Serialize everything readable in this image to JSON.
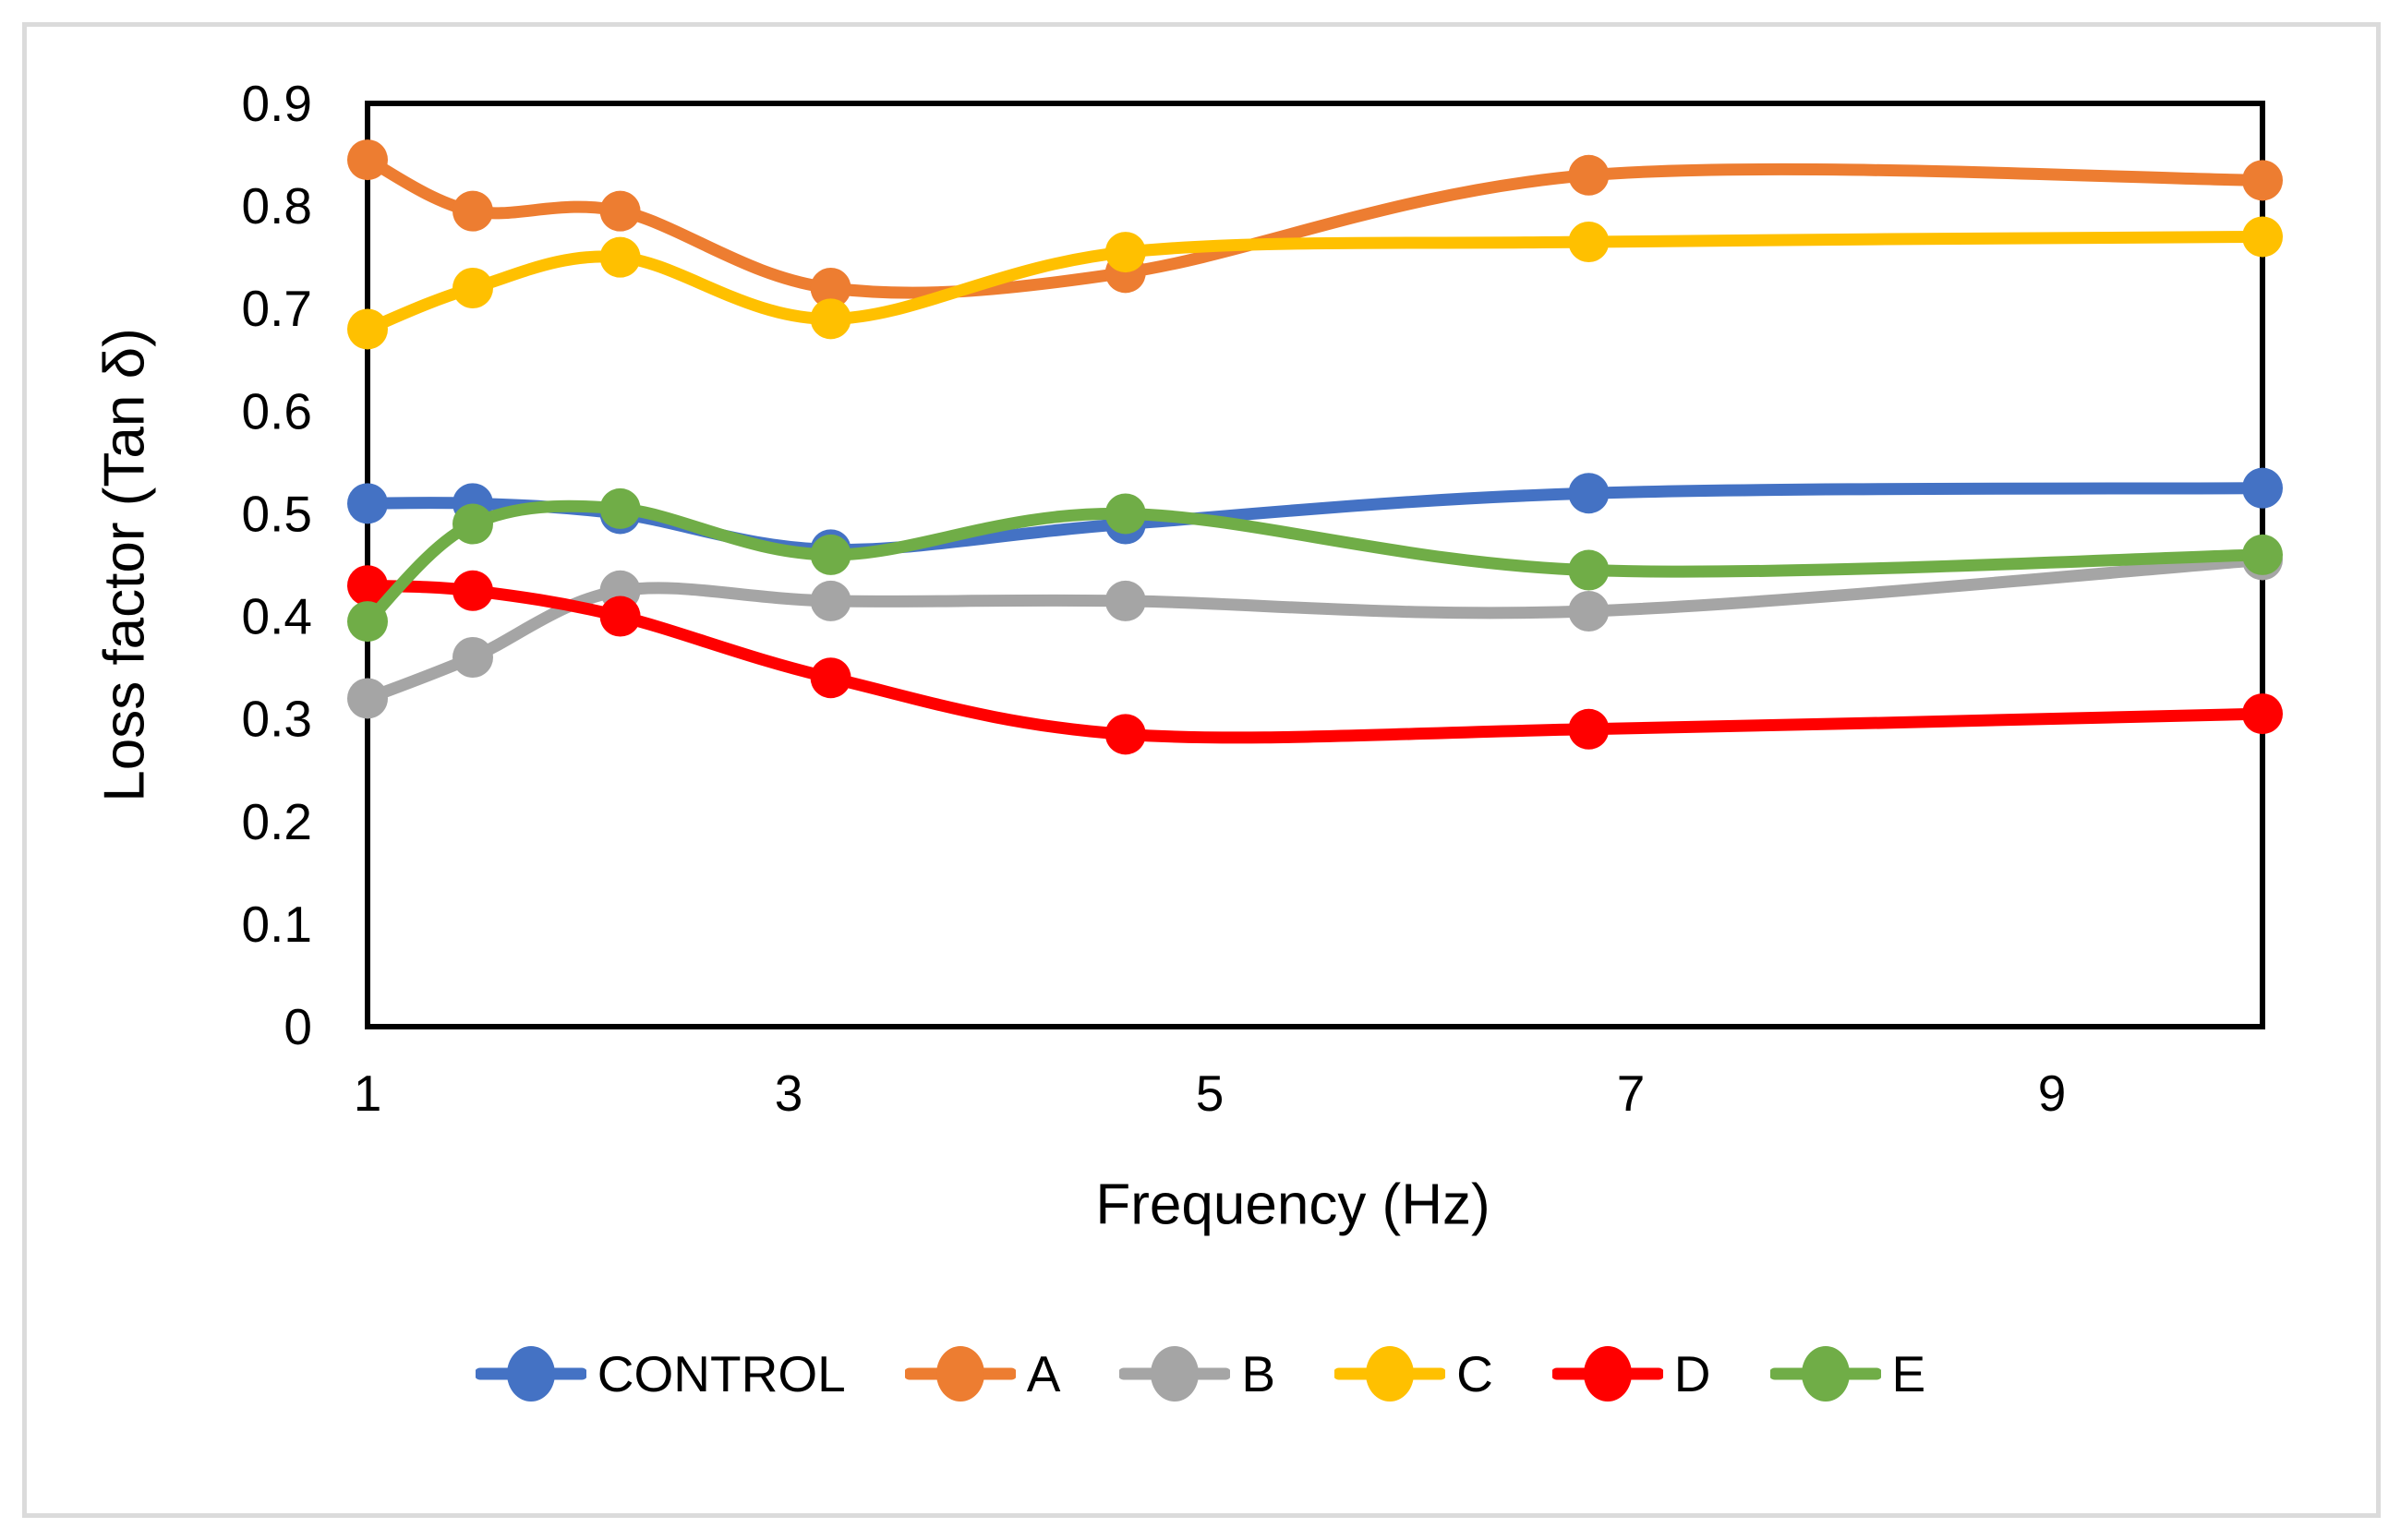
{
  "frame": {
    "border_color": "#DBDBDB",
    "background": "#FFFFFF"
  },
  "chart_data": {
    "type": "line",
    "title": "",
    "xlabel": "Frequency (Hz)",
    "ylabel": "Loss factor (Tan δ)",
    "x": [
      1,
      1.5,
      2.2,
      3.2,
      4.6,
      6.8,
      10
    ],
    "xlim": [
      1,
      10
    ],
    "ylim": [
      0,
      0.9
    ],
    "x_ticks": [
      "1",
      "3",
      "5",
      "7",
      "9"
    ],
    "y_ticks": [
      "0.9",
      "0.8",
      "0.7",
      "0.6",
      "0.5",
      "0.4",
      "0.3",
      "0.2",
      "0.1",
      "0"
    ],
    "grid": false,
    "line_smoothing": true,
    "marker": "circle",
    "axis_color": "#000000",
    "legend_position": "bottom",
    "series": [
      {
        "name": "CONTROL",
        "color": "#4472C4",
        "values": [
          0.51,
          0.51,
          0.5,
          0.465,
          0.49,
          0.52,
          0.525
        ]
      },
      {
        "name": "A",
        "color": "#ED7D31",
        "values": [
          0.845,
          0.795,
          0.795,
          0.72,
          0.735,
          0.83,
          0.825
        ]
      },
      {
        "name": "B",
        "color": "#A5A5A5",
        "values": [
          0.32,
          0.36,
          0.425,
          0.415,
          0.415,
          0.405,
          0.455
        ]
      },
      {
        "name": "C",
        "color": "#FFC000",
        "values": [
          0.68,
          0.72,
          0.75,
          0.69,
          0.755,
          0.765,
          0.77
        ]
      },
      {
        "name": "D",
        "color": "#FF0000",
        "values": [
          0.43,
          0.425,
          0.4,
          0.34,
          0.285,
          0.29,
          0.305
        ]
      },
      {
        "name": "E",
        "color": "#70AD47",
        "values": [
          0.395,
          0.49,
          0.505,
          0.46,
          0.5,
          0.445,
          0.46
        ]
      }
    ]
  }
}
